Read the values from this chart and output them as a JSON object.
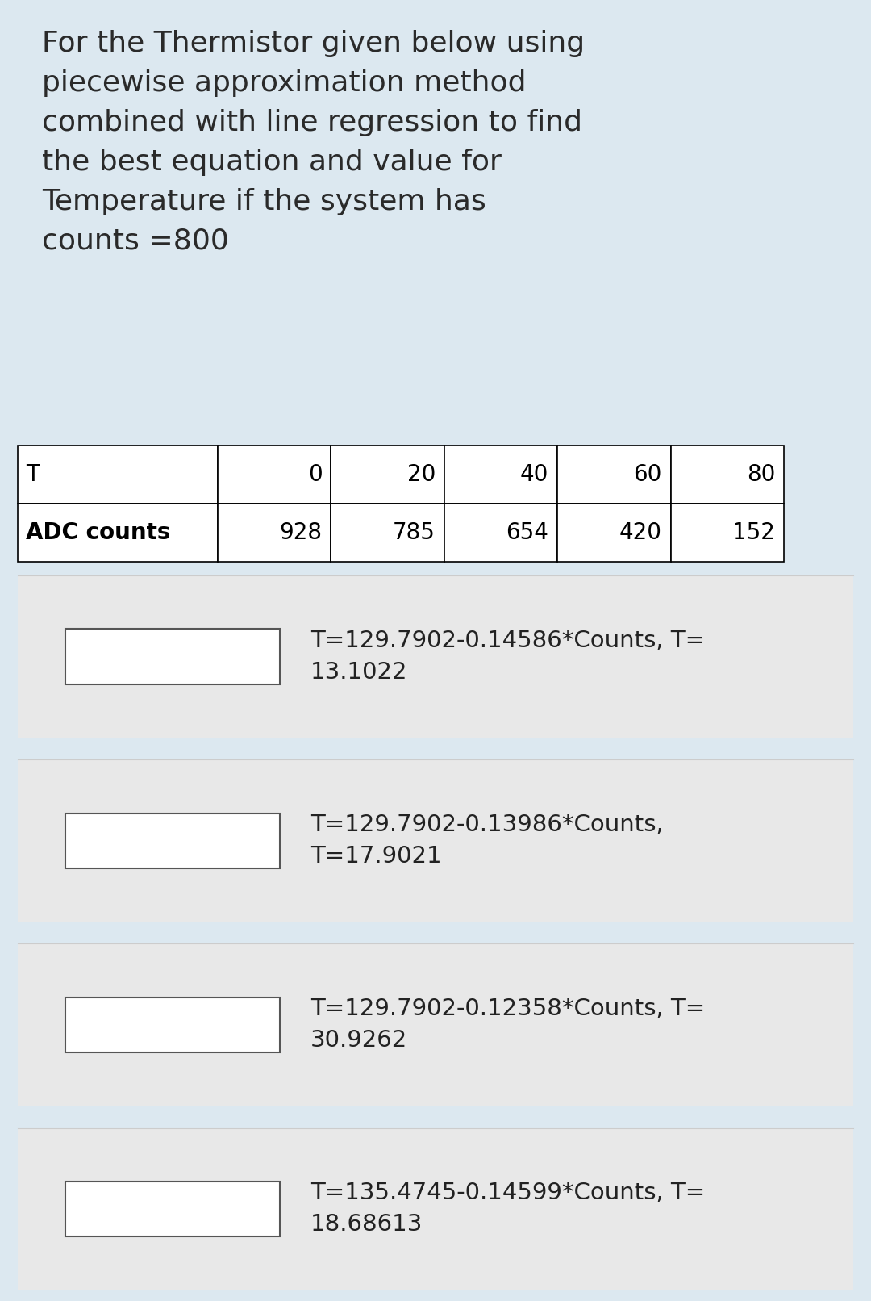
{
  "title_text": "For the Thermistor given below using\npiecewise approximation method\ncombined with line regression to find\nthe best equation and value for\nTemperature if the system has\ncounts =800",
  "table_header": [
    "T",
    "0",
    "20",
    "40",
    "60",
    "80"
  ],
  "table_row_label": "ADC counts",
  "table_row_values": [
    "928",
    "785",
    "654",
    "420",
    "152"
  ],
  "options": [
    "T=129.7902-0.14586*Counts, T=\n13.1022",
    "T=129.7902-0.13986*Counts,\nT=17.9021",
    "T=129.7902-0.12358*Counts, T=\n30.9262",
    "T=135.4745-0.14599*Counts, T=\n18.68613"
  ],
  "option_bg_color": "#e8e8e8",
  "option_text_color": "#222222",
  "checkbox_color": "#ffffff",
  "checkbox_border": "#555555",
  "table_border_color": "#000000",
  "table_text_color": "#000000",
  "title_text_color": "#2a2a2a",
  "fig_bg_color": "#dce8f0"
}
